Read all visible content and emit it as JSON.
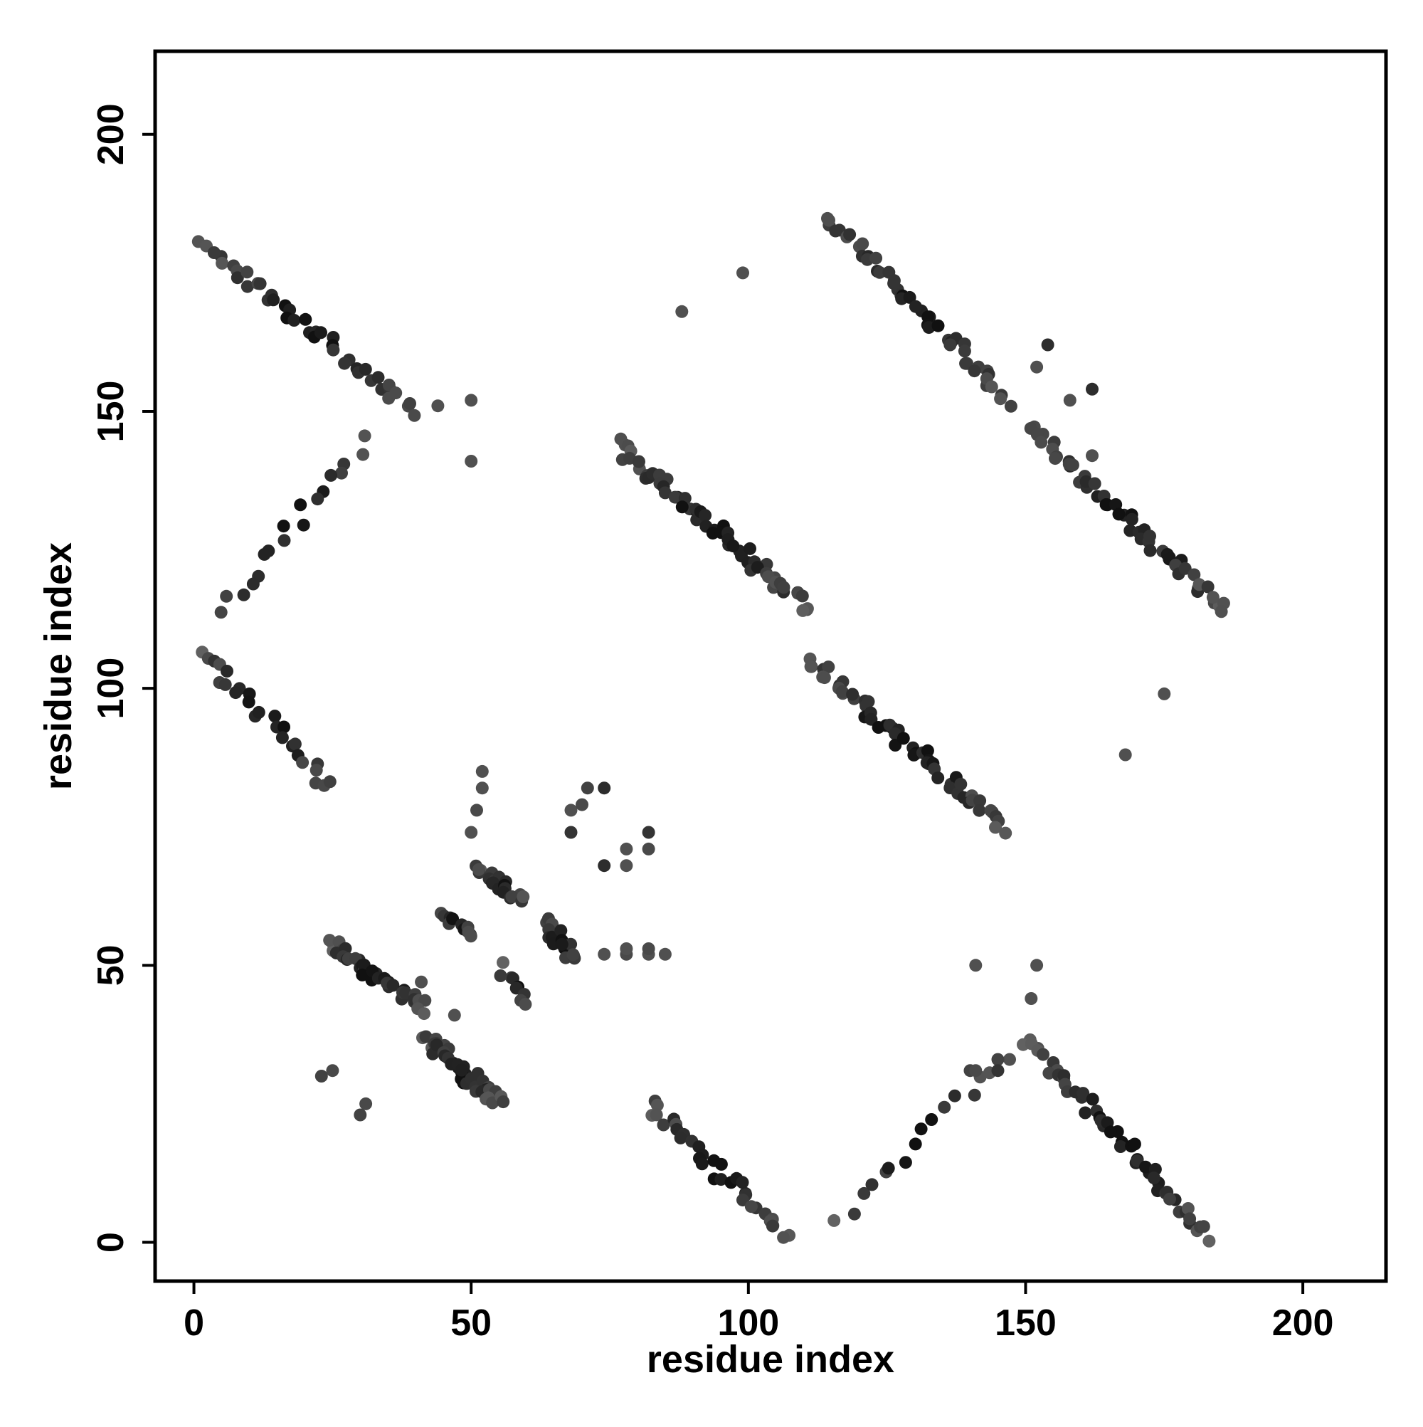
{
  "chart_data": {
    "type": "scatter",
    "title": "",
    "xlabel": "residue index",
    "ylabel": "residue index",
    "xlim": [
      -7,
      215
    ],
    "ylim": [
      -7,
      215
    ],
    "xticks": [
      0,
      50,
      100,
      150,
      200
    ],
    "yticks": [
      0,
      50,
      100,
      150,
      200
    ],
    "xtick_labels": [
      "0",
      "50",
      "100",
      "150",
      "200"
    ],
    "ytick_labels": [
      "0",
      "50",
      "100",
      "150",
      "200"
    ],
    "grid": false,
    "legend": "none",
    "marker": "filled circle",
    "color_scale": "grayscale (darker = stronger contact)",
    "segments": [
      {
        "name": "band-1",
        "from": [
          2,
          180
        ],
        "to": [
          40,
          150
        ],
        "density": 42
      },
      {
        "name": "band-2",
        "from": [
          31,
          145
        ],
        "to": [
          5,
          114
        ],
        "density": 18
      },
      {
        "name": "band-3",
        "from": [
          1,
          107
        ],
        "to": [
          25,
          82
        ],
        "density": 26
      },
      {
        "name": "band-4",
        "from": [
          24,
          54
        ],
        "to": [
          42,
          42
        ],
        "density": 40
      },
      {
        "name": "band-5",
        "from": [
          42,
          37
        ],
        "to": [
          55,
          25
        ],
        "density": 40
      },
      {
        "name": "band-6",
        "from": [
          44,
          60
        ],
        "to": [
          51,
          55
        ],
        "density": 12
      },
      {
        "name": "band-7",
        "from": [
          51,
          68
        ],
        "to": [
          59,
          62
        ],
        "density": 20
      },
      {
        "name": "band-8",
        "from": [
          63,
          58
        ],
        "to": [
          69,
          51
        ],
        "density": 16
      },
      {
        "name": "band-9",
        "from": [
          55,
          50
        ],
        "to": [
          60,
          44
        ],
        "density": 9
      },
      {
        "name": "band-10",
        "from": [
          76,
          144
        ],
        "to": [
          111,
          114
        ],
        "density": 60
      },
      {
        "name": "band-11",
        "from": [
          111,
          105
        ],
        "to": [
          146,
          75
        ],
        "density": 56
      },
      {
        "name": "band-12",
        "from": [
          114,
          185
        ],
        "to": [
          147,
          152
        ],
        "density": 48
      },
      {
        "name": "band-13",
        "from": [
          151,
          147
        ],
        "to": [
          186,
          114
        ],
        "density": 52
      },
      {
        "name": "band-14",
        "from": [
          82,
          25
        ],
        "to": [
          107,
          1
        ],
        "density": 34
      },
      {
        "name": "band-15",
        "from": [
          116,
          4
        ],
        "to": [
          146,
          33
        ],
        "density": 16
      },
      {
        "name": "band-16",
        "from": [
          150,
          37
        ],
        "to": [
          183,
          1
        ],
        "density": 52
      }
    ],
    "points": [
      {
        "x": 44,
        "y": 151,
        "v": 0.5
      },
      {
        "x": 50,
        "y": 152,
        "v": 0.5
      },
      {
        "x": 50,
        "y": 141,
        "v": 0.5
      },
      {
        "x": 99,
        "y": 175,
        "v": 0.5
      },
      {
        "x": 88,
        "y": 168,
        "v": 0.5
      },
      {
        "x": 175,
        "y": 99,
        "v": 0.5
      },
      {
        "x": 168,
        "y": 88,
        "v": 0.5
      },
      {
        "x": 141,
        "y": 50,
        "v": 0.5
      },
      {
        "x": 152,
        "y": 50,
        "v": 0.5
      },
      {
        "x": 151,
        "y": 44,
        "v": 0.5
      },
      {
        "x": 152,
        "y": 158,
        "v": 0.5
      },
      {
        "x": 154,
        "y": 162,
        "v": 0.75
      },
      {
        "x": 158,
        "y": 152,
        "v": 0.5
      },
      {
        "x": 162,
        "y": 154,
        "v": 0.75
      },
      {
        "x": 162,
        "y": 142,
        "v": 0.5
      },
      {
        "x": 23,
        "y": 30,
        "v": 0.6
      },
      {
        "x": 25,
        "y": 31,
        "v": 0.55
      },
      {
        "x": 30,
        "y": 23,
        "v": 0.6
      },
      {
        "x": 31,
        "y": 25,
        "v": 0.55
      },
      {
        "x": 47,
        "y": 41,
        "v": 0.5
      },
      {
        "x": 41,
        "y": 47,
        "v": 0.5
      },
      {
        "x": 50,
        "y": 74,
        "v": 0.5
      },
      {
        "x": 51,
        "y": 78,
        "v": 0.55
      },
      {
        "x": 52,
        "y": 82,
        "v": 0.5
      },
      {
        "x": 52,
        "y": 85,
        "v": 0.5
      },
      {
        "x": 68,
        "y": 74,
        "v": 0.7
      },
      {
        "x": 68,
        "y": 78,
        "v": 0.5
      },
      {
        "x": 70,
        "y": 79,
        "v": 0.55
      },
      {
        "x": 71,
        "y": 82,
        "v": 0.6
      },
      {
        "x": 74,
        "y": 82,
        "v": 0.75
      },
      {
        "x": 74,
        "y": 68,
        "v": 0.75
      },
      {
        "x": 78,
        "y": 68,
        "v": 0.5
      },
      {
        "x": 78,
        "y": 71,
        "v": 0.5
      },
      {
        "x": 82,
        "y": 74,
        "v": 0.7
      },
      {
        "x": 82,
        "y": 71,
        "v": 0.55
      },
      {
        "x": 74,
        "y": 52,
        "v": 0.5
      },
      {
        "x": 78,
        "y": 52,
        "v": 0.55
      },
      {
        "x": 78,
        "y": 53,
        "v": 0.5
      },
      {
        "x": 82,
        "y": 52,
        "v": 0.5
      },
      {
        "x": 82,
        "y": 53,
        "v": 0.55
      },
      {
        "x": 85,
        "y": 52,
        "v": 0.5
      },
      {
        "x": 140,
        "y": 31,
        "v": 0.6
      },
      {
        "x": 141,
        "y": 31,
        "v": 0.55
      },
      {
        "x": 145,
        "y": 33,
        "v": 0.6
      },
      {
        "x": 145,
        "y": 31,
        "v": 0.7
      }
    ]
  }
}
